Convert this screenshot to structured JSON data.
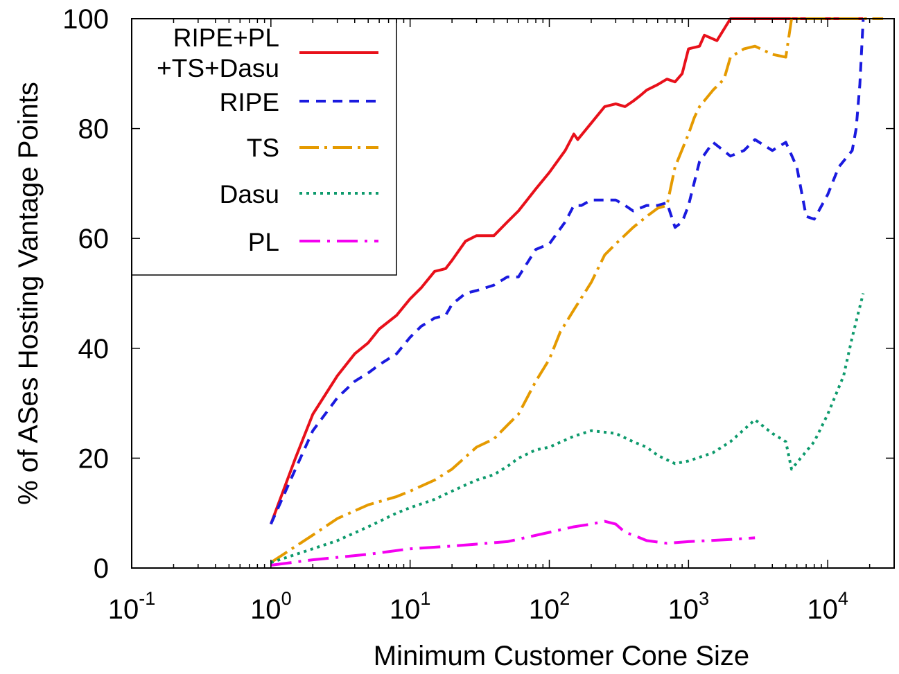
{
  "chart_data": {
    "type": "line",
    "xlabel": "Minimum Customer Cone Size",
    "ylabel": "% of ASes Hosting Vantage Points",
    "xscale": "log",
    "xlim": [
      0.1,
      30000
    ],
    "ylim": [
      0,
      100
    ],
    "grid": false,
    "legend_position": "top-left",
    "x_ticks": [
      {
        "value": 0.1,
        "base": "10",
        "exp": "-1"
      },
      {
        "value": 1,
        "base": "10",
        "exp": "0"
      },
      {
        "value": 10,
        "base": "10",
        "exp": "1"
      },
      {
        "value": 100,
        "base": "10",
        "exp": "2"
      },
      {
        "value": 1000,
        "base": "10",
        "exp": "3"
      },
      {
        "value": 10000,
        "base": "10",
        "exp": "4"
      }
    ],
    "y_ticks": [
      "0",
      "20",
      "40",
      "60",
      "80",
      "100"
    ],
    "series": [
      {
        "name_lines": [
          "RIPE+PL",
          "+TS+Dasu"
        ],
        "color": "#e8101a",
        "dash": "solid",
        "points": [
          [
            1,
            8
          ],
          [
            1.5,
            20
          ],
          [
            2,
            28
          ],
          [
            3,
            35
          ],
          [
            4,
            39
          ],
          [
            5,
            41
          ],
          [
            6,
            43.5
          ],
          [
            8,
            46
          ],
          [
            10,
            49
          ],
          [
            12,
            51
          ],
          [
            15,
            54
          ],
          [
            18,
            54.5
          ],
          [
            20,
            56
          ],
          [
            25,
            59.5
          ],
          [
            30,
            60.5
          ],
          [
            40,
            60.5
          ],
          [
            50,
            63
          ],
          [
            60,
            65
          ],
          [
            80,
            69
          ],
          [
            100,
            72
          ],
          [
            130,
            76
          ],
          [
            150,
            79
          ],
          [
            160,
            78
          ],
          [
            200,
            81
          ],
          [
            250,
            84
          ],
          [
            300,
            84.5
          ],
          [
            350,
            84
          ],
          [
            400,
            85
          ],
          [
            450,
            86
          ],
          [
            500,
            87
          ],
          [
            600,
            88
          ],
          [
            700,
            89
          ],
          [
            800,
            88.5
          ],
          [
            900,
            90
          ],
          [
            1000,
            94.5
          ],
          [
            1200,
            95
          ],
          [
            1300,
            97
          ],
          [
            1600,
            96
          ],
          [
            2000,
            100
          ],
          [
            3000,
            100
          ],
          [
            5000,
            100
          ],
          [
            10000,
            100
          ],
          [
            18000,
            100
          ]
        ]
      },
      {
        "name": "RIPE",
        "color": "#1a1adf",
        "dash": "14,10",
        "points": [
          [
            1,
            8
          ],
          [
            1.5,
            18
          ],
          [
            2,
            25
          ],
          [
            3,
            31
          ],
          [
            4,
            34
          ],
          [
            5,
            35.5
          ],
          [
            6,
            37
          ],
          [
            8,
            39
          ],
          [
            10,
            42
          ],
          [
            12,
            44
          ],
          [
            15,
            45.5
          ],
          [
            18,
            46
          ],
          [
            20,
            48
          ],
          [
            25,
            50
          ],
          [
            30,
            50.5
          ],
          [
            40,
            51.5
          ],
          [
            50,
            53
          ],
          [
            60,
            53
          ],
          [
            80,
            58
          ],
          [
            100,
            59
          ],
          [
            130,
            63
          ],
          [
            150,
            66
          ],
          [
            170,
            66
          ],
          [
            200,
            67
          ],
          [
            250,
            67
          ],
          [
            300,
            67
          ],
          [
            350,
            66
          ],
          [
            400,
            65
          ],
          [
            500,
            66
          ],
          [
            600,
            66
          ],
          [
            700,
            66.5
          ],
          [
            800,
            62
          ],
          [
            900,
            63
          ],
          [
            1000,
            66
          ],
          [
            1200,
            74
          ],
          [
            1500,
            77.5
          ],
          [
            2000,
            75
          ],
          [
            2500,
            76
          ],
          [
            3000,
            78
          ],
          [
            4000,
            76
          ],
          [
            5000,
            77.5
          ],
          [
            6000,
            73
          ],
          [
            7000,
            64
          ],
          [
            8000,
            63.5
          ],
          [
            10000,
            68
          ],
          [
            12000,
            73
          ],
          [
            15000,
            76
          ],
          [
            16000,
            80
          ],
          [
            17000,
            88
          ],
          [
            18000,
            100
          ]
        ]
      },
      {
        "name": "TS",
        "color": "#e59a00",
        "dash": "28,8,4,8",
        "points": [
          [
            1,
            1
          ],
          [
            2,
            6
          ],
          [
            3,
            9
          ],
          [
            5,
            11.5
          ],
          [
            8,
            13
          ],
          [
            10,
            14
          ],
          [
            15,
            16
          ],
          [
            20,
            18
          ],
          [
            30,
            22
          ],
          [
            40,
            23.5
          ],
          [
            50,
            26
          ],
          [
            60,
            28
          ],
          [
            80,
            34
          ],
          [
            100,
            38
          ],
          [
            120,
            43
          ],
          [
            150,
            47
          ],
          [
            200,
            52
          ],
          [
            250,
            57
          ],
          [
            300,
            59
          ],
          [
            400,
            62
          ],
          [
            500,
            64
          ],
          [
            600,
            65.5
          ],
          [
            700,
            66
          ],
          [
            800,
            73
          ],
          [
            1000,
            79
          ],
          [
            1100,
            82
          ],
          [
            1200,
            84
          ],
          [
            1500,
            87
          ],
          [
            1800,
            89
          ],
          [
            2000,
            93
          ],
          [
            2500,
            94.5
          ],
          [
            3000,
            95
          ],
          [
            4000,
            93.5
          ],
          [
            5000,
            93
          ],
          [
            5500,
            100
          ],
          [
            10000,
            100
          ],
          [
            25000,
            100
          ]
        ]
      },
      {
        "name": "Dasu",
        "color": "#0d9a6c",
        "dash": "4,6",
        "points": [
          [
            1,
            1
          ],
          [
            2,
            3.5
          ],
          [
            3,
            5
          ],
          [
            5,
            7.5
          ],
          [
            8,
            10
          ],
          [
            10,
            11
          ],
          [
            15,
            12.5
          ],
          [
            20,
            14
          ],
          [
            30,
            16
          ],
          [
            40,
            17
          ],
          [
            50,
            18.5
          ],
          [
            60,
            20
          ],
          [
            80,
            21.5
          ],
          [
            100,
            22
          ],
          [
            150,
            24
          ],
          [
            200,
            25
          ],
          [
            300,
            24.5
          ],
          [
            400,
            23
          ],
          [
            500,
            22
          ],
          [
            600,
            20.5
          ],
          [
            800,
            19
          ],
          [
            1000,
            19.5
          ],
          [
            1500,
            21
          ],
          [
            2000,
            23
          ],
          [
            3000,
            27
          ],
          [
            4000,
            24.5
          ],
          [
            5000,
            23
          ],
          [
            5500,
            18
          ],
          [
            8000,
            23
          ],
          [
            10000,
            28
          ],
          [
            13000,
            35
          ],
          [
            15000,
            42
          ],
          [
            18000,
            50
          ]
        ]
      },
      {
        "name": "PL",
        "color": "#f400f0",
        "dash": "30,10,4,10",
        "points": [
          [
            1,
            0.5
          ],
          [
            2,
            1.5
          ],
          [
            5,
            2.5
          ],
          [
            10,
            3.5
          ],
          [
            20,
            4
          ],
          [
            50,
            4.8
          ],
          [
            100,
            6.5
          ],
          [
            150,
            7.5
          ],
          [
            200,
            8
          ],
          [
            250,
            8.5
          ],
          [
            300,
            8
          ],
          [
            350,
            6.5
          ],
          [
            400,
            6
          ],
          [
            500,
            5
          ],
          [
            700,
            4.5
          ],
          [
            1000,
            4.8
          ],
          [
            2000,
            5.2
          ],
          [
            3000,
            5.5
          ]
        ]
      }
    ]
  }
}
